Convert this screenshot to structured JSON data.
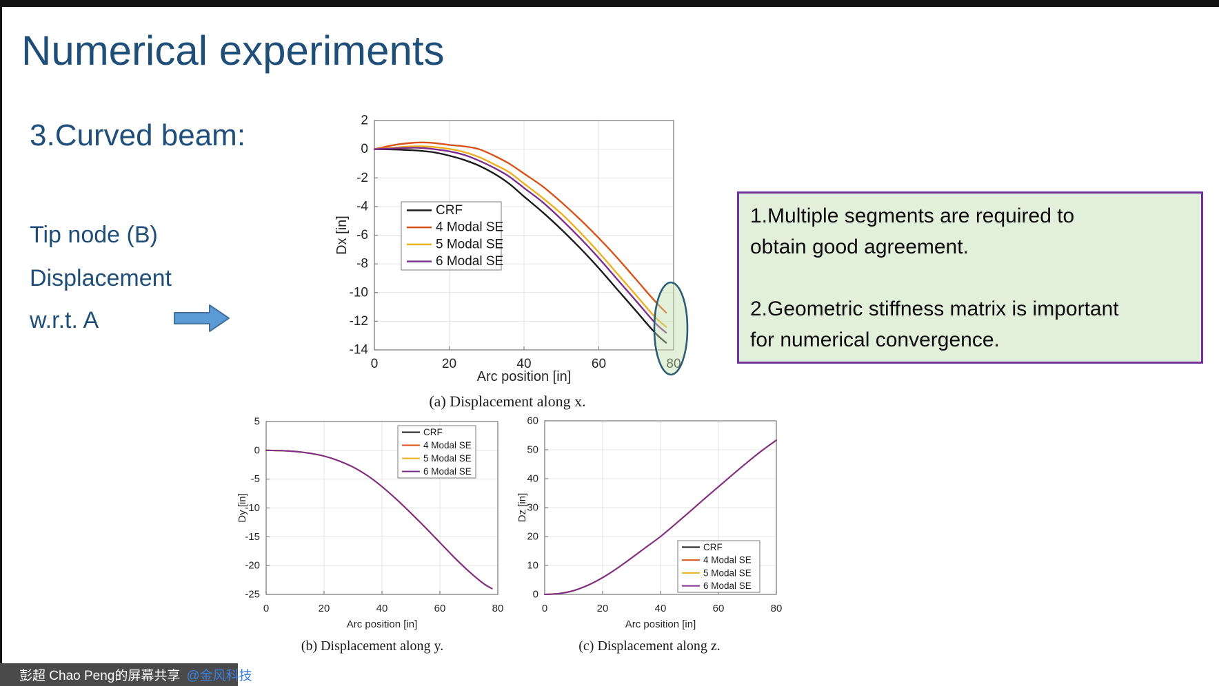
{
  "slide": {
    "title": "Numerical experiments",
    "subtitle": "3.Curved beam:",
    "side_text": [
      "Tip node (B)",
      "Displacement",
      "w.r.t. A"
    ],
    "note_box": {
      "paragraphs": [
        "1.Multiple segments are required to\nobtain good agreement.",
        "2.Geometric stiffness matrix is important\nfor numerical convergence."
      ]
    }
  },
  "share_bar": {
    "text": "彭超 Chao Peng的屏幕共享 ",
    "link": "@金风科技",
    "icons": [
      "microphone-muted-icon",
      "screen-share-icon"
    ]
  },
  "colors": {
    "title_blue": "#1F4E79",
    "arrow_fill": "#5B9BD5",
    "arrow_border": "#41719C",
    "note_fill": "#E2EFDA",
    "note_border": "#7030A0",
    "bar_bg": "#4A4A4A",
    "bar_text": "#FFFFFF",
    "bar_link": "#3D7FE0",
    "axis": "#808080",
    "grid": "#E4E4E4",
    "tick_text": "#262626",
    "legend_border": "#7A7A7A",
    "ellipse_stroke": "#2C5D74",
    "ellipse_fill": "rgba(193,222,172,0.45)"
  },
  "chart_data": [
    {
      "id": "dx",
      "type": "line",
      "xlabel": "Arc position [in]",
      "ylabel": "Dx [in]",
      "caption": "(a) Displacement along x.",
      "xlim": [
        0,
        80
      ],
      "ylim": [
        -14,
        2
      ],
      "xticks": [
        0,
        20,
        40,
        60,
        80
      ],
      "yticks": [
        2,
        0,
        -2,
        -4,
        -6,
        -8,
        -10,
        -12,
        -14
      ],
      "grid": true,
      "legend_position": "upper-left-inside",
      "x": [
        0,
        5,
        10,
        13,
        16,
        20,
        24,
        28,
        32,
        36,
        40,
        45,
        50,
        55,
        60,
        65,
        70,
        75,
        78
      ],
      "series": [
        {
          "name": "CRF",
          "color": "#1A1A1A",
          "y": [
            0,
            -0.02,
            -0.07,
            -0.13,
            -0.22,
            -0.45,
            -0.75,
            -1.15,
            -1.7,
            -2.4,
            -3.3,
            -4.4,
            -5.6,
            -6.9,
            -8.3,
            -9.8,
            -11.3,
            -12.8,
            -13.5
          ]
        },
        {
          "name": "4 Modal SE",
          "color": "#D95319",
          "y": [
            0,
            0.28,
            0.44,
            0.47,
            0.43,
            0.3,
            0.2,
            0.0,
            -0.45,
            -1.0,
            -1.7,
            -2.6,
            -3.7,
            -4.9,
            -6.2,
            -7.6,
            -9.1,
            -10.6,
            -11.4
          ]
        },
        {
          "name": "5 Modal SE",
          "color": "#EDB120",
          "y": [
            0,
            0.1,
            0.2,
            0.2,
            0.15,
            0.02,
            -0.2,
            -0.55,
            -1.05,
            -1.6,
            -2.4,
            -3.4,
            -4.5,
            -5.8,
            -7.2,
            -8.7,
            -10.2,
            -11.7,
            -12.4
          ]
        },
        {
          "name": "6 Modal SE",
          "color": "#7E2F8E",
          "y": [
            0,
            0.05,
            0.1,
            0.08,
            0.0,
            -0.15,
            -0.4,
            -0.8,
            -1.3,
            -1.9,
            -2.7,
            -3.7,
            -4.9,
            -6.2,
            -7.6,
            -9.1,
            -10.6,
            -12.1,
            -12.8
          ]
        }
      ],
      "annotation": {
        "shape": "ellipse",
        "meaning": "highlight of tip displacement spread near arc position 80"
      }
    },
    {
      "id": "dy",
      "type": "line",
      "xlabel": "Arc position [in]",
      "ylabel": "Dy [in]",
      "caption": "(b) Displacement along y.",
      "xlim": [
        0,
        80
      ],
      "ylim": [
        -25,
        5
      ],
      "xticks": [
        0,
        20,
        40,
        60,
        80
      ],
      "yticks": [
        5,
        0,
        -5,
        -10,
        -15,
        -20,
        -25
      ],
      "grid": true,
      "legend_position": "upper-right-inside",
      "x": [
        0,
        5,
        10,
        15,
        20,
        25,
        30,
        35,
        40,
        45,
        50,
        55,
        60,
        65,
        70,
        75,
        78
      ],
      "series": [
        {
          "name": "CRF",
          "color": "#1A1A1A",
          "y": [
            0,
            -0.05,
            -0.2,
            -0.5,
            -1.0,
            -1.8,
            -2.9,
            -4.4,
            -6.3,
            -8.5,
            -10.9,
            -13.4,
            -16.0,
            -18.6,
            -21.0,
            -23.1,
            -24.0
          ]
        },
        {
          "name": "4 Modal SE",
          "color": "#D95319",
          "y": [
            0,
            -0.05,
            -0.2,
            -0.5,
            -1.0,
            -1.8,
            -2.9,
            -4.4,
            -6.3,
            -8.5,
            -10.9,
            -13.4,
            -16.0,
            -18.6,
            -21.0,
            -23.1,
            -24.0
          ]
        },
        {
          "name": "5 Modal SE",
          "color": "#EDB120",
          "y": [
            0,
            -0.05,
            -0.2,
            -0.5,
            -1.0,
            -1.8,
            -2.9,
            -4.4,
            -6.3,
            -8.5,
            -10.9,
            -13.4,
            -16.0,
            -18.6,
            -21.0,
            -23.1,
            -24.0
          ]
        },
        {
          "name": "6 Modal SE",
          "color": "#7E2F8E",
          "y": [
            0,
            -0.05,
            -0.2,
            -0.5,
            -1.0,
            -1.8,
            -2.9,
            -4.4,
            -6.3,
            -8.5,
            -10.9,
            -13.4,
            -16.0,
            -18.6,
            -21.0,
            -23.1,
            -24.0
          ]
        }
      ]
    },
    {
      "id": "dz",
      "type": "line",
      "xlabel": "Arc position [in]",
      "ylabel": "Dz [in]",
      "caption": "(c) Displacement along z.",
      "xlim": [
        0,
        80
      ],
      "ylim": [
        0,
        60
      ],
      "xticks": [
        0,
        20,
        40,
        60,
        80
      ],
      "yticks": [
        0,
        10,
        20,
        30,
        40,
        50,
        60
      ],
      "grid": true,
      "legend_position": "lower-right-inside",
      "x": [
        0,
        5,
        10,
        15,
        20,
        25,
        30,
        35,
        40,
        45,
        50,
        55,
        60,
        65,
        70,
        75,
        80
      ],
      "series": [
        {
          "name": "CRF",
          "color": "#1A1A1A",
          "y": [
            0,
            0.3,
            1.3,
            3.2,
            5.8,
            9.0,
            12.6,
            16.3,
            20.0,
            24.2,
            28.5,
            32.9,
            37.2,
            41.5,
            45.7,
            49.7,
            53.3
          ]
        },
        {
          "name": "4 Modal SE",
          "color": "#D95319",
          "y": [
            0,
            0.3,
            1.3,
            3.2,
            5.8,
            9.0,
            12.6,
            16.3,
            20.0,
            24.2,
            28.5,
            32.9,
            37.2,
            41.5,
            45.7,
            49.7,
            53.3
          ]
        },
        {
          "name": "5 Modal SE",
          "color": "#EDB120",
          "y": [
            0,
            0.3,
            1.3,
            3.2,
            5.8,
            9.0,
            12.6,
            16.3,
            20.0,
            24.2,
            28.5,
            32.9,
            37.2,
            41.5,
            45.7,
            49.7,
            53.3
          ]
        },
        {
          "name": "6 Modal SE",
          "color": "#7E2F8E",
          "y": [
            0,
            0.3,
            1.3,
            3.2,
            5.8,
            9.0,
            12.6,
            16.3,
            20.0,
            24.2,
            28.5,
            32.9,
            37.2,
            41.5,
            45.7,
            49.7,
            53.3
          ]
        }
      ]
    }
  ]
}
